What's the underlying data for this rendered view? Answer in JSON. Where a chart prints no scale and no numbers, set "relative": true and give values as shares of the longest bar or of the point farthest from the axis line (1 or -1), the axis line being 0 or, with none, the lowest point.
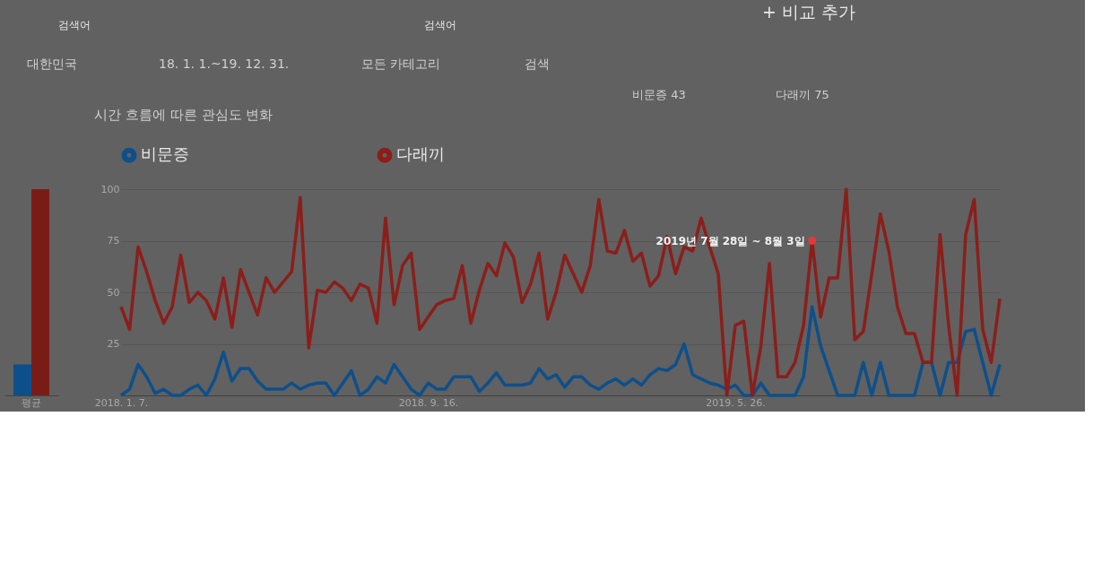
{
  "chart_data": [
    {
      "type": "bar",
      "relative": true,
      "categories": [
        "평균"
      ],
      "tick_labels": "x",
      "series": [
        {
          "color": "#0d4f8b",
          "values": [
            0.15
          ]
        },
        {
          "color": "#7a1c16",
          "values": [
            1
          ]
        }
      ]
    },
    {
      "type": "line",
      "title": "시간 흐름에 따른 관심도 변화",
      "x": [
        "2018-01-07",
        "2018-01-14",
        "2018-01-21",
        "2018-01-28",
        "2018-02-04",
        "2018-02-11",
        "2018-02-18",
        "2018-02-25",
        "2018-03-04",
        "2018-03-11",
        "2018-03-18",
        "2018-03-25",
        "2018-04-01",
        "2018-04-08",
        "2018-04-15",
        "2018-04-22",
        "2018-04-29",
        "2018-05-06",
        "2018-05-13",
        "2018-05-20",
        "2018-05-27",
        "2018-06-03",
        "2018-06-10",
        "2018-06-17",
        "2018-06-24",
        "2018-07-01",
        "2018-07-08",
        "2018-07-15",
        "2018-07-22",
        "2018-07-29",
        "2018-08-05",
        "2018-08-12",
        "2018-08-19",
        "2018-08-26",
        "2018-09-02",
        "2018-09-09",
        "2018-09-16",
        "2018-09-23",
        "2018-09-30",
        "2018-10-07",
        "2018-10-14",
        "2018-10-21",
        "2018-10-28",
        "2018-11-04",
        "2018-11-11",
        "2018-11-18",
        "2018-11-25",
        "2018-12-02",
        "2018-12-09",
        "2018-12-16",
        "2018-12-23",
        "2018-12-30",
        "2019-01-06",
        "2019-01-13",
        "2019-01-20",
        "2019-01-27",
        "2019-02-03",
        "2019-02-10",
        "2019-02-17",
        "2019-02-24",
        "2019-03-03",
        "2019-03-10",
        "2019-03-17",
        "2019-03-24",
        "2019-03-31",
        "2019-04-07",
        "2019-04-14",
        "2019-04-21",
        "2019-04-28",
        "2019-05-05",
        "2019-05-12",
        "2019-05-19",
        "2019-05-26",
        "2019-06-02",
        "2019-06-09",
        "2019-06-16",
        "2019-06-23",
        "2019-06-30",
        "2019-07-07",
        "2019-07-14",
        "2019-07-21",
        "2019-07-28",
        "2019-08-04",
        "2019-08-11",
        "2019-08-18",
        "2019-08-25",
        "2019-09-01",
        "2019-09-08",
        "2019-09-15",
        "2019-09-22",
        "2019-09-29",
        "2019-10-06",
        "2019-10-13",
        "2019-10-20",
        "2019-10-27",
        "2019-11-03",
        "2019-11-10",
        "2019-11-17",
        "2019-11-24",
        "2019-12-01",
        "2019-12-08",
        "2019-12-15",
        "2019-12-22",
        "2019-12-29"
      ],
      "xlim": [
        "2018-01-07",
        "2019-12-29"
      ],
      "xticks": [
        {
          "value": "2018-01-07",
          "label": "2018. 1. 7."
        },
        {
          "value": "2018-09-16",
          "label": "2018. 9. 16."
        },
        {
          "value": "2019-05-26",
          "label": "2019. 5. 26."
        }
      ],
      "ylim": [
        0,
        100
      ],
      "yticks": [
        25,
        50,
        75,
        100
      ],
      "grid": "y",
      "legend": "top",
      "marker": "none",
      "line_style": "solid",
      "series": [
        {
          "name": "비문증",
          "color": "#0d4f8b",
          "values": [
            0,
            3,
            15,
            9,
            1,
            3,
            0,
            0,
            3,
            5,
            0,
            8,
            21,
            7,
            13,
            13,
            7,
            3,
            3,
            3,
            6,
            3,
            5,
            6,
            6,
            0,
            6,
            12,
            0,
            3,
            9,
            6,
            15,
            9,
            3,
            0,
            6,
            3,
            3,
            9,
            9,
            9,
            2,
            6,
            11,
            5,
            5,
            5,
            6,
            13,
            8,
            10,
            4,
            9,
            9,
            5,
            3,
            6,
            8,
            5,
            8,
            5,
            10,
            13,
            12,
            15,
            25,
            10,
            8,
            6,
            5,
            3,
            5,
            0,
            0,
            6,
            0,
            0,
            0,
            0,
            9,
            43,
            24,
            12,
            0,
            0,
            0,
            16,
            0,
            16,
            0,
            0,
            0,
            0,
            16,
            16,
            0,
            16,
            16,
            31,
            32,
            16,
            0,
            15
          ]
        },
        {
          "name": "다래끼",
          "color": "#8b1e1a",
          "values": [
            43,
            32,
            72,
            60,
            46,
            35,
            43,
            68,
            45,
            50,
            46,
            37,
            57,
            33,
            61,
            50,
            39,
            57,
            50,
            55,
            60,
            96,
            23,
            51,
            50,
            55,
            52,
            46,
            54,
            52,
            35,
            86,
            44,
            63,
            69,
            32,
            38,
            44,
            46,
            47,
            63,
            35,
            51,
            64,
            58,
            74,
            67,
            45,
            54,
            69,
            37,
            50,
            68,
            59,
            50,
            63,
            95,
            70,
            69,
            80,
            65,
            69,
            53,
            58,
            77,
            59,
            72,
            70,
            86,
            72,
            59,
            0,
            34,
            36,
            0,
            24,
            64,
            9,
            9,
            16,
            34,
            75,
            38,
            57,
            57,
            100,
            27,
            31,
            59,
            88,
            70,
            43,
            30,
            30,
            16,
            16,
            78,
            34,
            0,
            78,
            95,
            32,
            16,
            47
          ]
        }
      ],
      "annotations": [
        "검색어",
        "검색어",
        "+ 비교 추가",
        "대한민국",
        "18. 1. 1.~19. 12. 31.",
        "모든 카테고리",
        "검색",
        {
          "text": "2019년 7월 28일 ~ 8월 3일",
          "x": "2019-07-28",
          "y": 75
        },
        "비문증 43",
        "다래끼 75"
      ]
    }
  ]
}
